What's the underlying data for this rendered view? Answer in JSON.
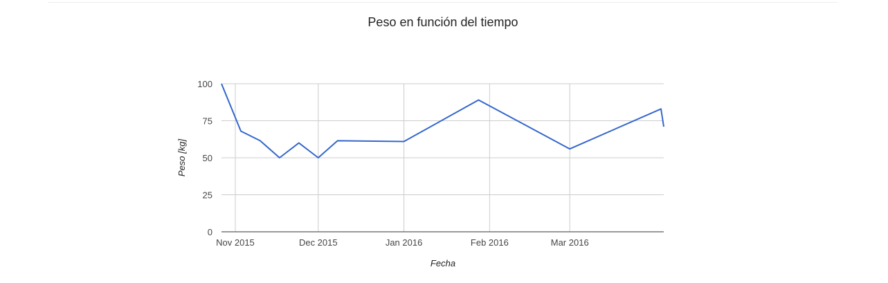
{
  "chart_data": {
    "type": "line",
    "title": "Peso en función del tiempo",
    "xlabel": "Fecha",
    "ylabel": "Peso [kg]",
    "ylim": [
      0,
      100
    ],
    "y_ticks": [
      "0",
      "25",
      "50",
      "75",
      "100"
    ],
    "x_ticks": [
      {
        "label": "Nov 2015",
        "date": "2015-11-01"
      },
      {
        "label": "Dec 2015",
        "date": "2015-12-01"
      },
      {
        "label": "Jan 2016",
        "date": "2016-01-01"
      },
      {
        "label": "Feb 2016",
        "date": "2016-02-01"
      },
      {
        "label": "Mar 2016",
        "date": "2016-03-01"
      }
    ],
    "xlim": [
      "2015-10-27",
      "2016-04-04"
    ],
    "grid": true,
    "legend": "none",
    "series": [
      {
        "color": "#3366cc",
        "points": [
          {
            "x": "2015-10-27",
            "y": 100
          },
          {
            "x": "2015-11-03",
            "y": 68
          },
          {
            "x": "2015-11-10",
            "y": 61.5
          },
          {
            "x": "2015-11-17",
            "y": 50
          },
          {
            "x": "2015-11-24",
            "y": 60
          },
          {
            "x": "2015-12-01",
            "y": 50
          },
          {
            "x": "2015-12-08",
            "y": 61.5
          },
          {
            "x": "2016-01-01",
            "y": 61
          },
          {
            "x": "2016-01-28",
            "y": 89
          },
          {
            "x": "2016-03-01",
            "y": 56
          },
          {
            "x": "2016-04-03",
            "y": 83
          },
          {
            "x": "2016-04-04",
            "y": 71
          }
        ]
      }
    ]
  }
}
